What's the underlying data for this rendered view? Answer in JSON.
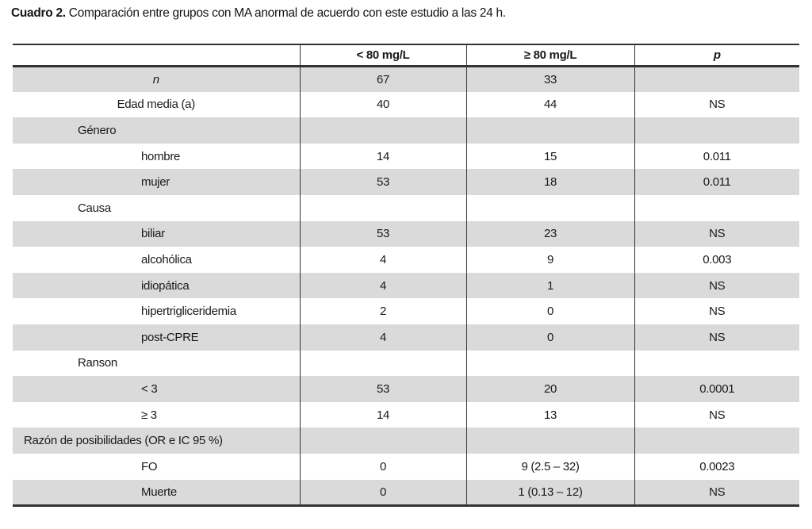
{
  "caption": {
    "number": "Cuadro 2.",
    "text": "Comparación entre grupos con MA anormal de acuerdo con este estudio a las 24 h."
  },
  "colors": {
    "stripe": "#dadada",
    "rule": "#333333",
    "text": "#1a1a1a",
    "background": "#ffffff"
  },
  "chart_data": {
    "type": "table",
    "title": "Cuadro 2. Comparación entre grupos con MA anormal de acuerdo con este estudio a las 24 h.",
    "columns": [
      "",
      "< 80 mg/L",
      "≥ 80 mg/L",
      "p"
    ],
    "rows": [
      {
        "label": "n",
        "level": "top",
        "italic": true,
        "cells": [
          "67",
          "33",
          ""
        ]
      },
      {
        "label": "Edad media (a)",
        "level": "top",
        "italic": false,
        "cells": [
          "40",
          "44",
          "NS"
        ]
      },
      {
        "label": "Género",
        "level": "section",
        "italic": false,
        "cells": [
          "",
          "",
          ""
        ]
      },
      {
        "label": "hombre",
        "level": "sub",
        "italic": false,
        "cells": [
          "14",
          "15",
          "0.011"
        ]
      },
      {
        "label": "mujer",
        "level": "sub",
        "italic": false,
        "cells": [
          "53",
          "18",
          "0.011"
        ]
      },
      {
        "label": "Causa",
        "level": "section",
        "italic": false,
        "cells": [
          "",
          "",
          ""
        ]
      },
      {
        "label": "biliar",
        "level": "sub",
        "italic": false,
        "cells": [
          "53",
          "23",
          "NS"
        ]
      },
      {
        "label": "alcohólica",
        "level": "sub",
        "italic": false,
        "cells": [
          "4",
          "9",
          "0.003"
        ]
      },
      {
        "label": "idiopática",
        "level": "sub",
        "italic": false,
        "cells": [
          "4",
          "1",
          "NS"
        ]
      },
      {
        "label": "hipertrigliceridemia",
        "level": "sub",
        "italic": false,
        "cells": [
          "2",
          "0",
          "NS"
        ]
      },
      {
        "label": "post-CPRE",
        "level": "sub",
        "italic": false,
        "cells": [
          "4",
          "0",
          "NS"
        ]
      },
      {
        "label": "Ranson",
        "level": "section",
        "italic": false,
        "cells": [
          "",
          "",
          ""
        ]
      },
      {
        "label": "< 3",
        "level": "sub",
        "italic": false,
        "cells": [
          "53",
          "20",
          "0.0001"
        ]
      },
      {
        "label": "≥ 3",
        "level": "sub",
        "italic": false,
        "cells": [
          "14",
          "13",
          "NS"
        ]
      },
      {
        "label": "Razón de posibilidades (OR e IC 95 %)",
        "level": "section-wide",
        "italic": false,
        "cells": [
          "",
          "",
          ""
        ]
      },
      {
        "label": "FO",
        "level": "sub",
        "italic": false,
        "cells": [
          "0",
          "9 (2.5 – 32)",
          "0.0023"
        ]
      },
      {
        "label": "Muerte",
        "level": "sub",
        "italic": false,
        "cells": [
          "0",
          "1 (0.13 – 12)",
          "NS"
        ]
      }
    ]
  }
}
